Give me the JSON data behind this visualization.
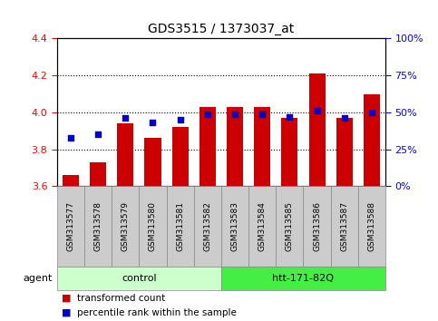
{
  "title": "GDS3515 / 1373037_at",
  "samples": [
    "GSM313577",
    "GSM313578",
    "GSM313579",
    "GSM313580",
    "GSM313581",
    "GSM313582",
    "GSM313583",
    "GSM313584",
    "GSM313585",
    "GSM313586",
    "GSM313587",
    "GSM313588"
  ],
  "transformed_count": [
    3.66,
    3.73,
    3.94,
    3.86,
    3.92,
    4.03,
    4.03,
    4.03,
    3.97,
    4.21,
    3.97,
    4.1
  ],
  "percentile_rank": [
    33,
    35,
    46,
    43,
    45,
    49,
    49,
    49,
    47,
    51,
    46,
    50
  ],
  "n_control": 6,
  "n_treatment": 6,
  "control_label": "control",
  "treatment_label": "htt-171-82Q",
  "agent_label": "agent",
  "bar_color": "#CC0000",
  "dot_color": "#0000CC",
  "ylim_left": [
    3.6,
    4.4
  ],
  "ylim_right": [
    0,
    100
  ],
  "yticks_left": [
    3.6,
    3.8,
    4.0,
    4.2,
    4.4
  ],
  "yticks_right": [
    0,
    25,
    50,
    75,
    100
  ],
  "ytick_labels_right": [
    "0%",
    "25%",
    "50%",
    "75%",
    "100%"
  ],
  "grid_values": [
    3.8,
    4.0,
    4.2
  ],
  "control_bg": "#ccffcc",
  "treatment_bg": "#44ee44",
  "xlabel_bg": "#cccccc",
  "bar_width": 0.6,
  "legend_items": [
    {
      "color": "#CC0000",
      "label": "transformed count"
    },
    {
      "color": "#0000CC",
      "label": "percentile rank within the sample"
    }
  ]
}
